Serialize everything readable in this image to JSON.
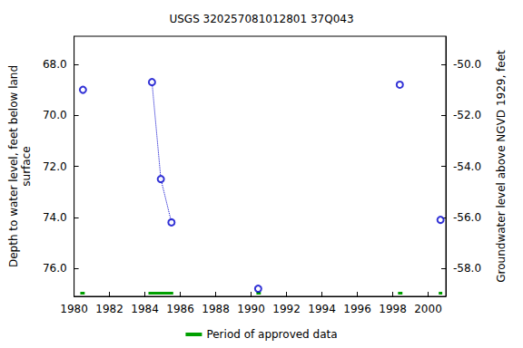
{
  "chart_data": {
    "type": "scatter",
    "title": "USGS 320257081012801 37Q043",
    "y_label": "Depth to water level, feet below land\nsurface",
    "y2_label": "Groundwater level above NGVD 1929, feet",
    "xlim": [
      1980,
      2001
    ],
    "xticks": [
      1980,
      1982,
      1984,
      1986,
      1988,
      1990,
      1992,
      1994,
      1996,
      1998,
      2000
    ],
    "ylim": [
      77.1,
      66.9
    ],
    "yticks": [
      {
        "value": 68,
        "label": "68.0"
      },
      {
        "value": 70,
        "label": "70.0"
      },
      {
        "value": 72,
        "label": "72.0"
      },
      {
        "value": 74,
        "label": "74.0"
      },
      {
        "value": 76,
        "label": "76.0"
      }
    ],
    "y2lim": [
      -59.1,
      -48.9
    ],
    "y2ticks": [
      {
        "value": -50,
        "label": "-50.0"
      },
      {
        "value": -52,
        "label": "-52.0"
      },
      {
        "value": -54,
        "label": "-54.0"
      },
      {
        "value": -56,
        "label": "-56.0"
      },
      {
        "value": -58,
        "label": "-58.0"
      }
    ],
    "grid": false,
    "legend": "bottom",
    "series": [
      {
        "type": "scatter",
        "marker": "circle-open",
        "color": "#0000cc",
        "x": [
          1980.5,
          1984.4,
          1984.9,
          1985.5,
          1990.4,
          1998.4,
          2000.7
        ],
        "values": [
          69.0,
          68.7,
          72.5,
          74.2,
          76.8,
          68.8,
          74.1
        ]
      },
      {
        "type": "line",
        "line_style": "dotted",
        "color": "#0000cc",
        "x": [
          1984.4,
          1984.9,
          1985.5
        ],
        "values": [
          68.7,
          72.5,
          74.2
        ]
      }
    ],
    "approved_periods": {
      "name": "Period of approved data",
      "color": "#00a000",
      "periods": [
        [
          1980.35,
          1980.6
        ],
        [
          1984.2,
          1985.6
        ],
        [
          1990.3,
          1990.55
        ],
        [
          1998.3,
          1998.55
        ],
        [
          2000.6,
          2000.8
        ]
      ]
    }
  }
}
